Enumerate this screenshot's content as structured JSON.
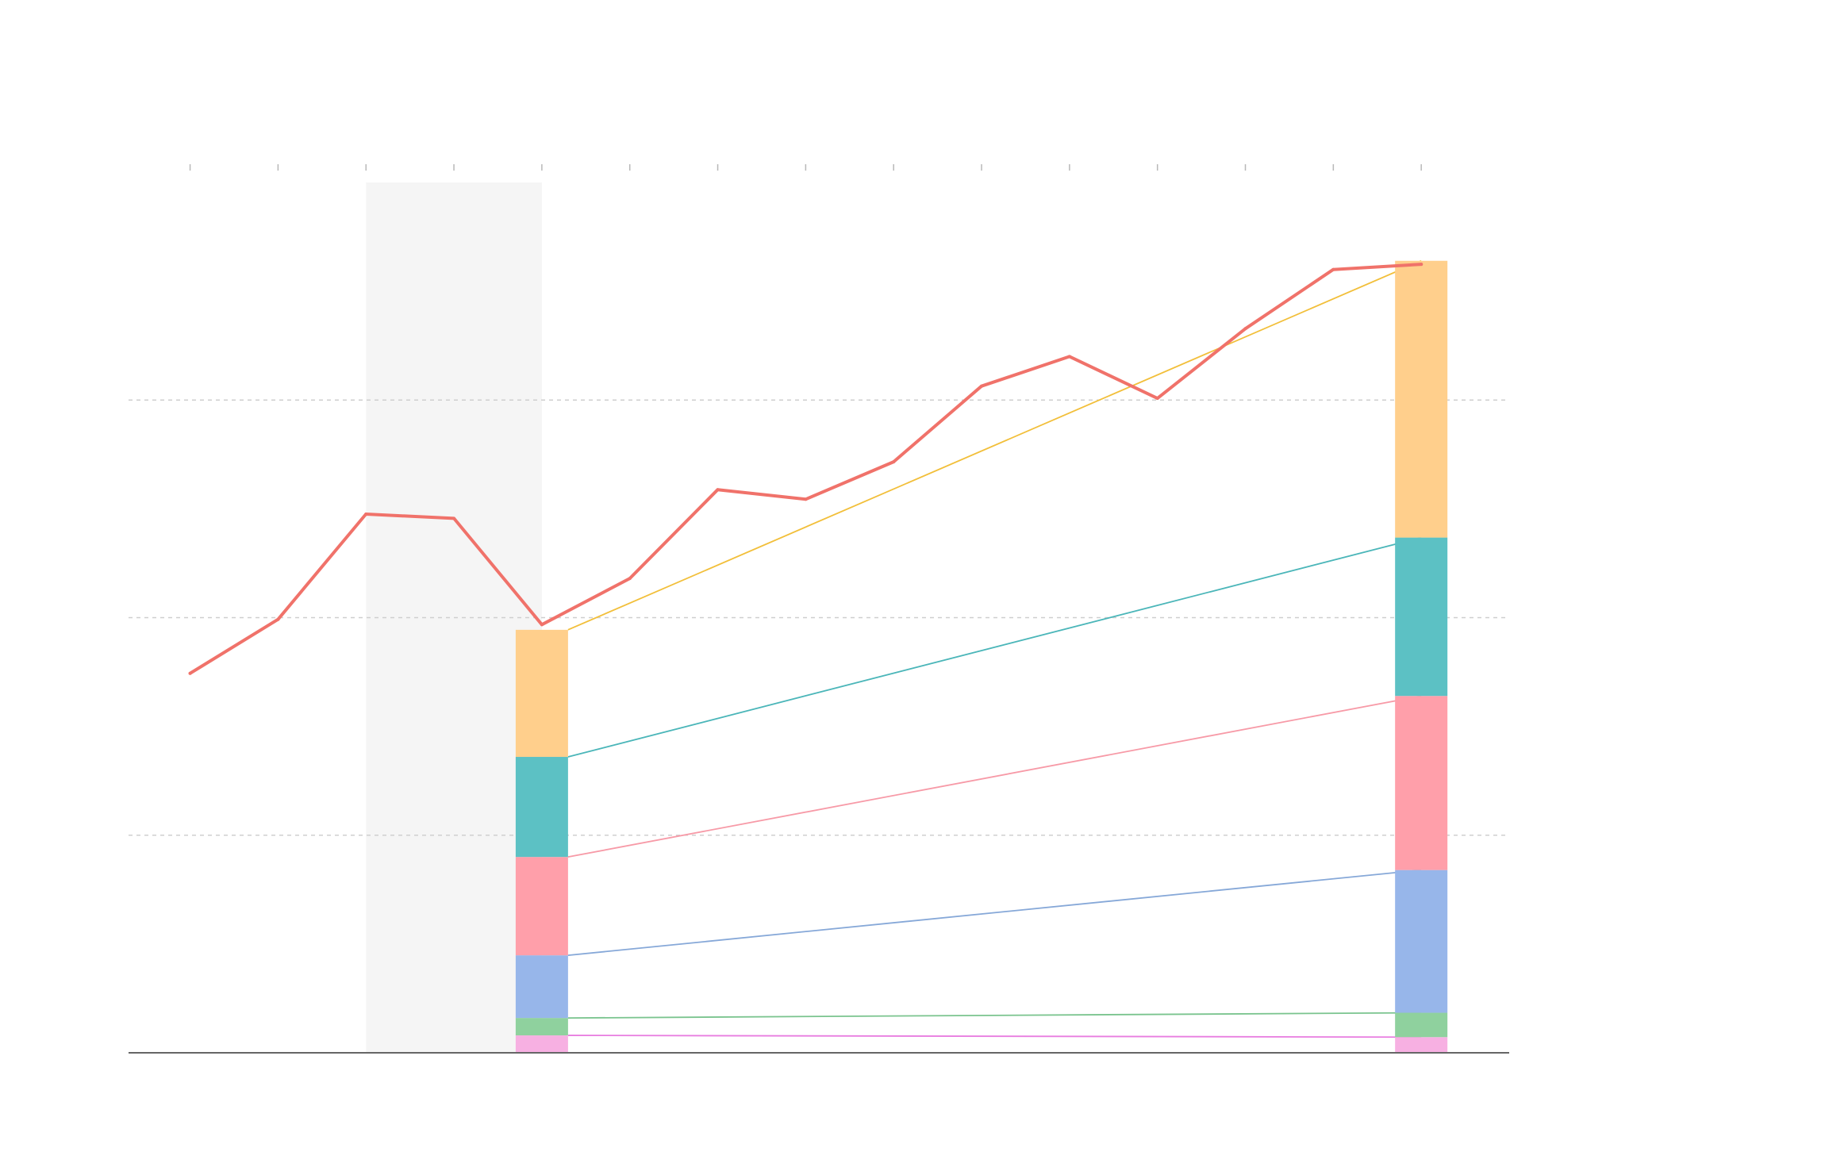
{
  "chart_data": {
    "type": "line",
    "title": "",
    "xlabel": "",
    "ylabel": "",
    "x": [
      1,
      2,
      3,
      4,
      5,
      6,
      7,
      8,
      9,
      10,
      11,
      12,
      13,
      14,
      15
    ],
    "xlim": [
      0.3,
      16
    ],
    "ylim": [
      0,
      100
    ],
    "grid_y": [
      25,
      50,
      75
    ],
    "shaded_x_range": [
      3,
      5
    ],
    "series": [
      {
        "color": "#f0726a",
        "values": [
          43.6,
          49.8,
          61.9,
          61.4,
          49.2,
          54.5,
          64.7,
          63.6,
          67.9,
          76.6,
          80.0,
          75.2,
          83.2,
          90.0,
          90.6
        ]
      }
    ],
    "stacked_bars": [
      {
        "x": 5,
        "segments": [
          {
            "color": "#f7b0e2",
            "value": 2.0
          },
          {
            "color": "#8fd19e",
            "value": 2.0
          },
          {
            "color": "#97b6ea",
            "value": 7.2
          },
          {
            "color": "#ff9faa",
            "value": 11.3
          },
          {
            "color": "#5cc1c4",
            "value": 11.5
          },
          {
            "color": "#ffcf8c",
            "value": 14.6
          }
        ]
      },
      {
        "x": 15,
        "segments": [
          {
            "color": "#f7b0e2",
            "value": 1.8
          },
          {
            "color": "#8fd19e",
            "value": 2.8
          },
          {
            "color": "#97b6ea",
            "value": 16.4
          },
          {
            "color": "#ff9faa",
            "value": 20.0
          },
          {
            "color": "#5cc1c4",
            "value": 18.2
          },
          {
            "color": "#ffcf8c",
            "value": 31.8
          }
        ]
      }
    ],
    "connector_colors": [
      "#e87de0",
      "#7ac48e",
      "#86a8d8",
      "#f79aa7",
      "#4bb6b9",
      "#f2bf3a"
    ]
  }
}
